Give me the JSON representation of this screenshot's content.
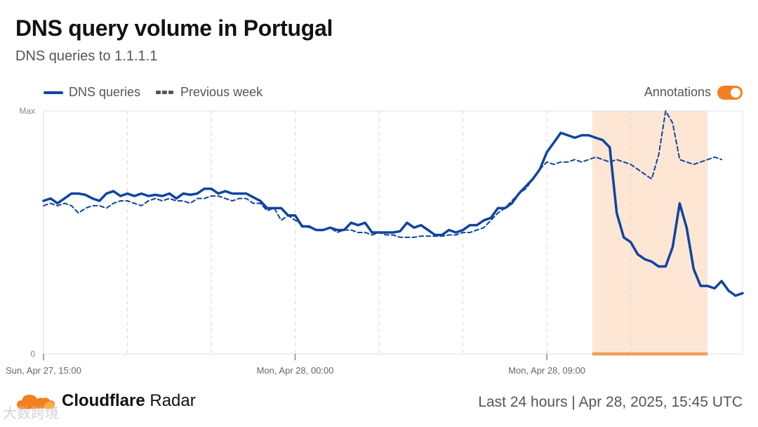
{
  "chart_data": {
    "type": "line",
    "title": "DNS query volume in Portugal",
    "subtitle": "DNS queries to 1.1.1.1",
    "ylim": [
      0,
      100
    ],
    "y_ticks": [
      {
        "label": "Max",
        "value": 100
      },
      {
        "label": "0",
        "value": 0
      }
    ],
    "x_ticks": [
      {
        "label": "Sun, Apr 27, 15:00",
        "index": 0
      },
      {
        "label": "Mon, Apr 28, 00:00",
        "index": 36
      },
      {
        "label": "Mon, Apr 28, 09:00",
        "index": 72
      }
    ],
    "grid_indices": [
      12,
      24,
      48,
      60,
      84
    ],
    "annotation": {
      "start_index": 78.5,
      "end_index": 95
    },
    "series": [
      {
        "name": "DNS queries",
        "style": "solid",
        "color": "#0f44a0",
        "values": [
          63,
          64,
          62,
          64,
          66,
          66,
          65.5,
          64,
          63,
          66,
          67,
          65,
          66,
          65,
          66,
          65,
          65.5,
          65,
          66,
          64,
          66,
          65.5,
          66,
          68,
          68,
          66,
          67,
          66,
          66,
          66,
          64.5,
          63,
          60,
          60,
          60,
          57,
          57,
          52.5,
          52.5,
          51,
          51,
          52,
          51,
          51,
          54,
          53,
          54,
          50,
          50,
          50,
          50,
          50.5,
          54,
          52,
          53,
          51,
          49,
          49,
          51,
          50,
          51,
          53,
          53,
          55,
          56,
          60,
          60,
          62,
          66,
          69,
          72,
          76,
          83,
          87,
          91,
          90,
          89,
          90,
          90,
          89,
          88,
          85,
          58,
          48,
          46,
          41,
          39,
          38,
          36,
          36,
          44,
          62,
          52,
          35,
          28,
          28,
          27,
          30,
          26,
          24,
          25
        ]
      },
      {
        "name": "Previous week",
        "style": "dashed",
        "color": "#0f44a0",
        "values": [
          61,
          62,
          61,
          62,
          61,
          58,
          60,
          61,
          61,
          60,
          62,
          63,
          63,
          62,
          61,
          63,
          64,
          63,
          64,
          63,
          63,
          62,
          64,
          64,
          65,
          65,
          64,
          63,
          64,
          64,
          62,
          62,
          59,
          60,
          55,
          57,
          55,
          53,
          52,
          51,
          51,
          52,
          50,
          51,
          51,
          50,
          50,
          49,
          50,
          49,
          49,
          48,
          48,
          48,
          48.5,
          48.5,
          48.5,
          48.5,
          49,
          49,
          50,
          50,
          51,
          52,
          55,
          58,
          60,
          63,
          66,
          68,
          72,
          76,
          79,
          78,
          79,
          79,
          80,
          79,
          80,
          81,
          80,
          79,
          80,
          79,
          78,
          76,
          74,
          72,
          82,
          100,
          95,
          80,
          79,
          78,
          79,
          80,
          81,
          80
        ]
      }
    ]
  },
  "legend": {
    "solid_label": "DNS queries",
    "dashed_label": "Previous week",
    "annotations_label": "Annotations"
  },
  "footer": {
    "brand_bold": "Cloudflare",
    "brand_rest": " Radar",
    "timestamp": "Last 24 hours | Apr 28, 2025, 15:45 UTC",
    "watermark": "大数跨境"
  },
  "colors": {
    "accent": "#f38020",
    "series": "#0f44a0",
    "annotation_fill": "#fde6d4"
  }
}
